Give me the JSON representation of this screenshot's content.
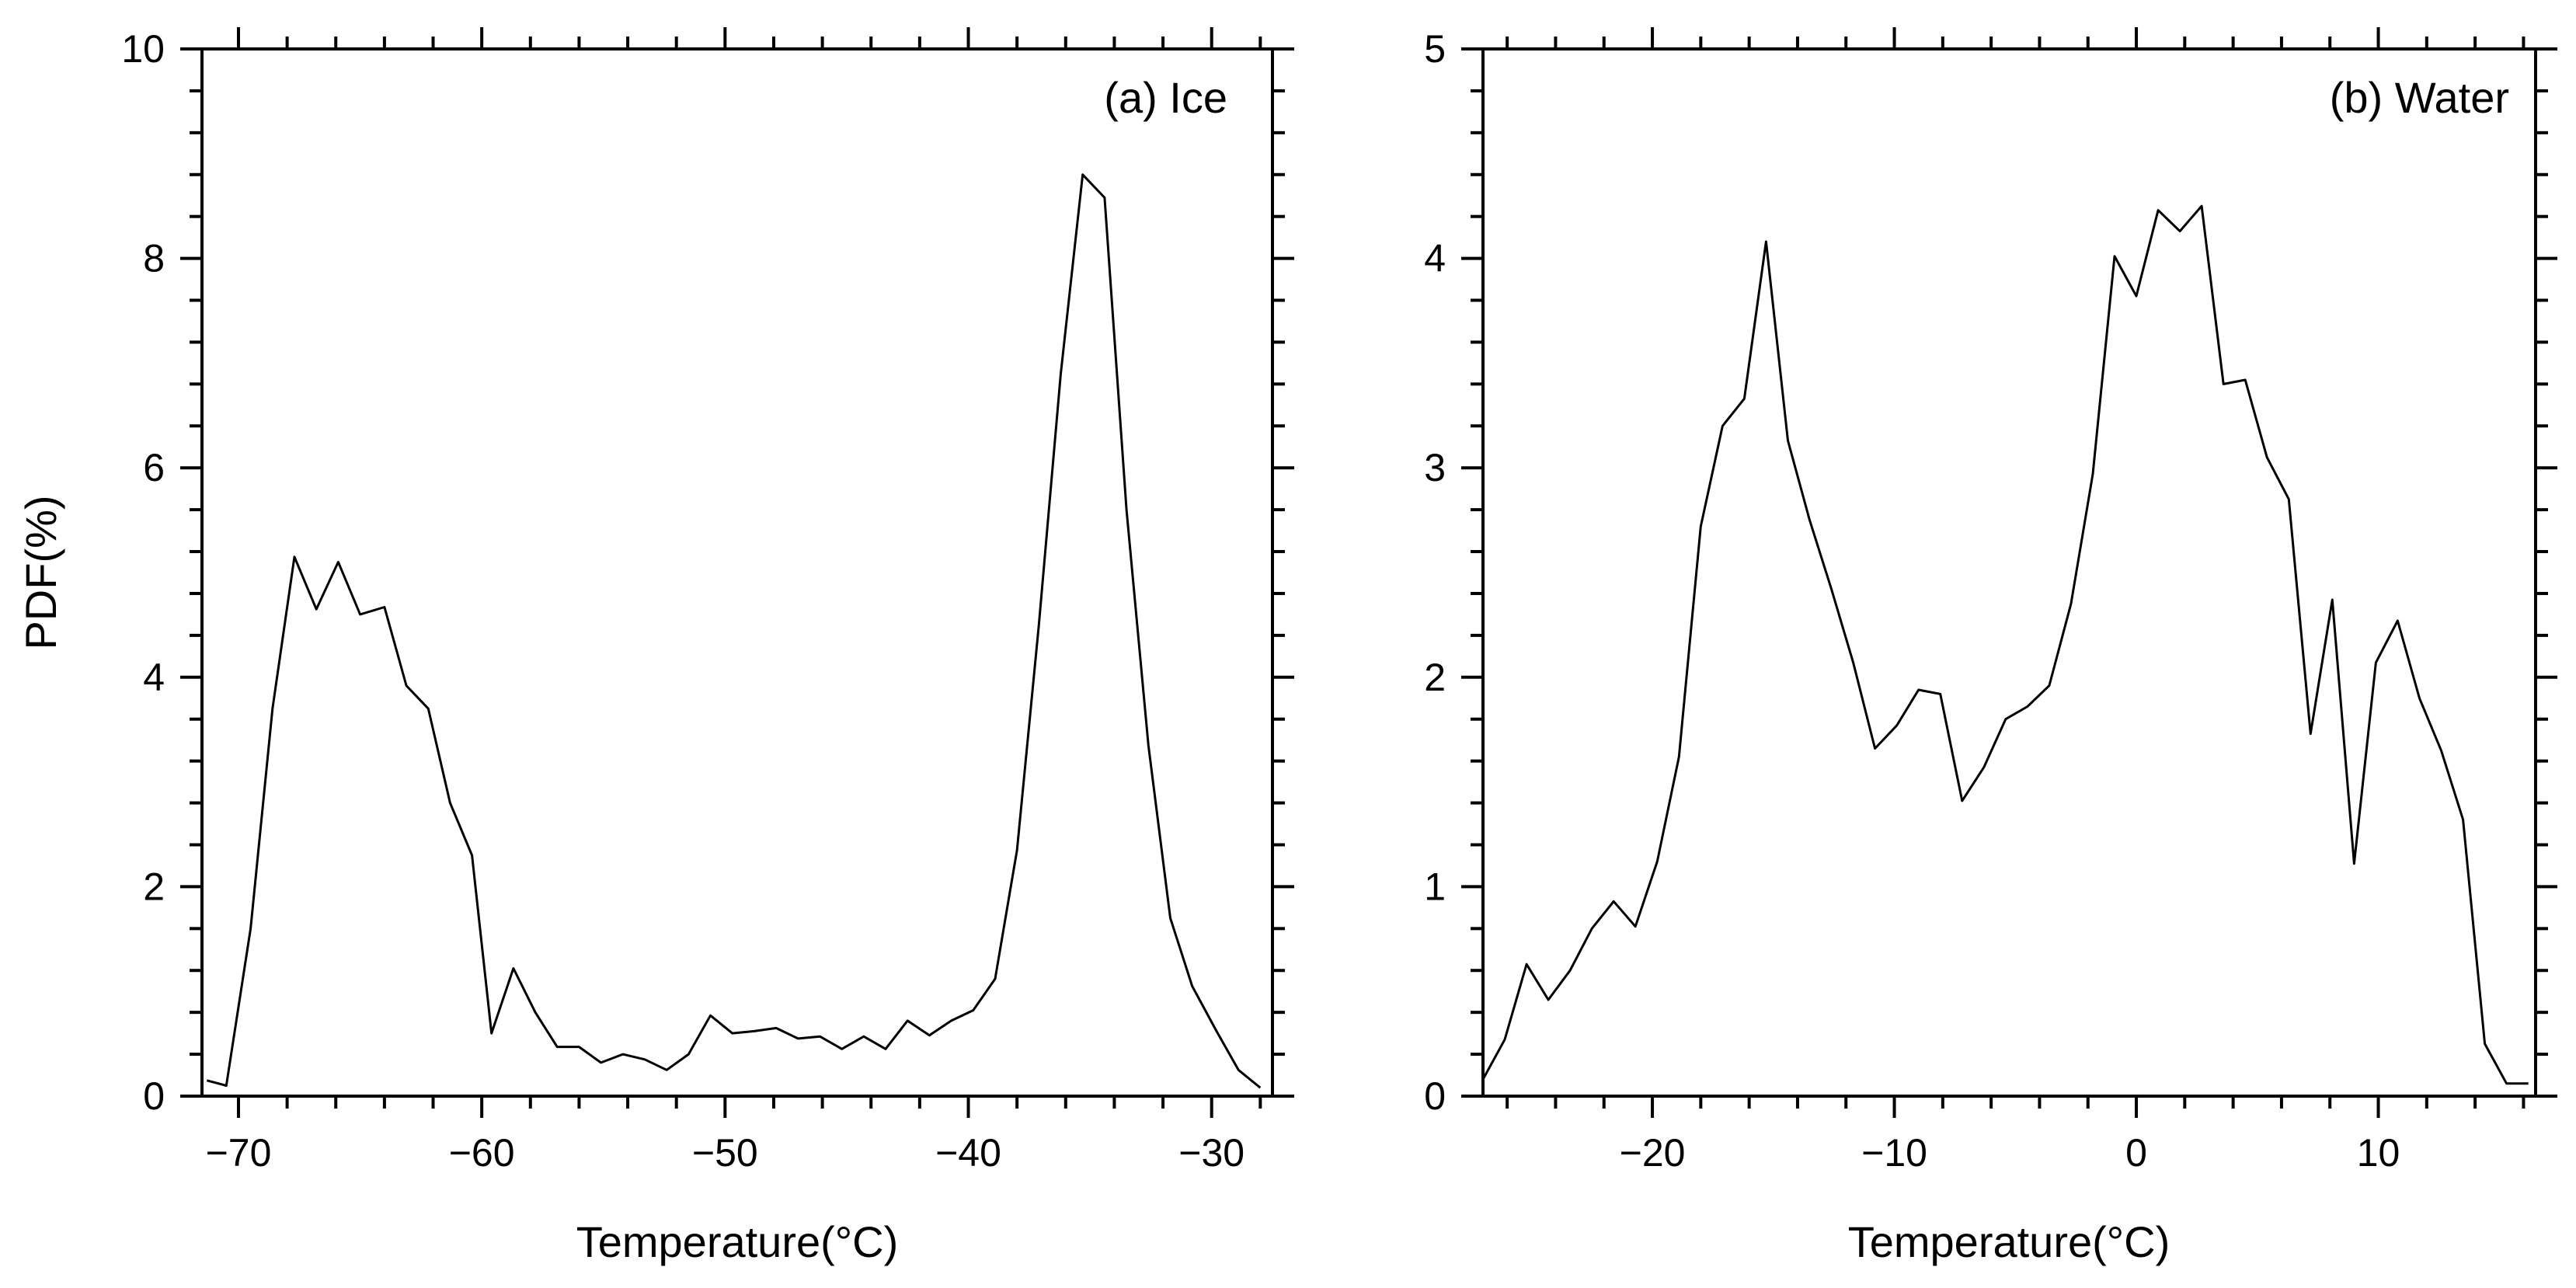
{
  "chart_data": [
    {
      "type": "line",
      "title": "(a) Ice",
      "xlabel": "Temperature(°C)",
      "ylabel": "PDF(%)",
      "xlim": [
        -71.5,
        -27.5
      ],
      "ylim": [
        0,
        10
      ],
      "xticks": [
        -70,
        -60,
        -50,
        -40,
        -30
      ],
      "xtick_labels": [
        "−70",
        "−60",
        "−50",
        "−40",
        "−30"
      ],
      "yticks": [
        0,
        2,
        4,
        6,
        8,
        10
      ],
      "ytick_labels": [
        "0",
        "2",
        "4",
        "6",
        "8",
        "10"
      ],
      "x": [
        -71.3,
        -70.5,
        -69.5,
        -68.6,
        -67.7,
        -66.8,
        -65.9,
        -65.0,
        -64.0,
        -63.1,
        -62.2,
        -61.3,
        -60.4,
        -59.6,
        -58.7,
        -57.8,
        -56.9,
        -56.0,
        -55.1,
        -54.2,
        -53.3,
        -52.4,
        -51.5,
        -50.6,
        -49.7,
        -48.8,
        -47.9,
        -47.0,
        -46.1,
        -45.2,
        -44.3,
        -43.4,
        -42.5,
        -41.6,
        -40.7,
        -39.8,
        -38.9,
        -38.0,
        -37.1,
        -36.2,
        -35.3,
        -34.4,
        -33.5,
        -32.6,
        -31.7,
        -30.8,
        -29.8,
        -28.9,
        -28.0
      ],
      "y": [
        0.15,
        0.1,
        1.6,
        3.7,
        5.15,
        4.65,
        5.1,
        4.6,
        4.67,
        3.92,
        3.7,
        2.8,
        2.3,
        0.6,
        1.22,
        0.8,
        0.47,
        0.47,
        0.32,
        0.4,
        0.35,
        0.25,
        0.4,
        0.77,
        0.6,
        0.62,
        0.65,
        0.55,
        0.57,
        0.45,
        0.57,
        0.45,
        0.72,
        0.58,
        0.72,
        0.82,
        1.12,
        2.35,
        4.5,
        6.9,
        8.8,
        8.58,
        5.6,
        3.35,
        1.7,
        1.05,
        0.62,
        0.25,
        0.08
      ],
      "y_last": 0.1
    },
    {
      "type": "line",
      "title": "(b) Water",
      "xlabel": "Temperature(°C)",
      "ylabel": "",
      "xlim": [
        -27,
        16.5
      ],
      "ylim": [
        0,
        5
      ],
      "xticks": [
        -20,
        -10,
        0,
        10
      ],
      "xtick_labels": [
        "−20",
        "−10",
        "0",
        "10"
      ],
      "yticks": [
        0,
        1,
        2,
        3,
        4,
        5
      ],
      "ytick_labels": [
        "0",
        "1",
        "2",
        "3",
        "4",
        "5"
      ],
      "x": [
        -27.0,
        -26.1,
        -25.2,
        -24.3,
        -23.4,
        -22.5,
        -21.6,
        -20.7,
        -19.8,
        -18.9,
        -18.0,
        -17.1,
        -16.2,
        -15.3,
        -14.4,
        -13.5,
        -12.6,
        -11.7,
        -10.8,
        -9.9,
        -9.0,
        -8.1,
        -7.2,
        -6.3,
        -5.4,
        -4.5,
        -3.6,
        -2.7,
        -1.8,
        -0.9,
        0.0,
        0.9,
        1.8,
        2.7,
        3.6,
        4.5,
        5.4,
        6.3,
        7.2,
        8.1,
        9.0,
        9.9,
        10.8,
        11.7,
        12.6,
        13.5,
        14.4,
        15.3,
        16.2
      ],
      "y": [
        0.08,
        0.27,
        0.63,
        0.46,
        0.6,
        0.8,
        0.93,
        0.81,
        1.12,
        1.62,
        2.72,
        3.2,
        3.33,
        4.08,
        3.13,
        2.75,
        2.42,
        2.07,
        1.66,
        1.77,
        1.94,
        1.92,
        1.41,
        1.57,
        1.8,
        1.86,
        1.96,
        2.35,
        2.97,
        4.01,
        3.82,
        4.23,
        4.13,
        4.25,
        3.4,
        3.42,
        3.05,
        2.85,
        1.73,
        2.37,
        1.11,
        2.07,
        2.27,
        1.9,
        1.65,
        1.32,
        0.25,
        0.06,
        0.06
      ]
    }
  ]
}
